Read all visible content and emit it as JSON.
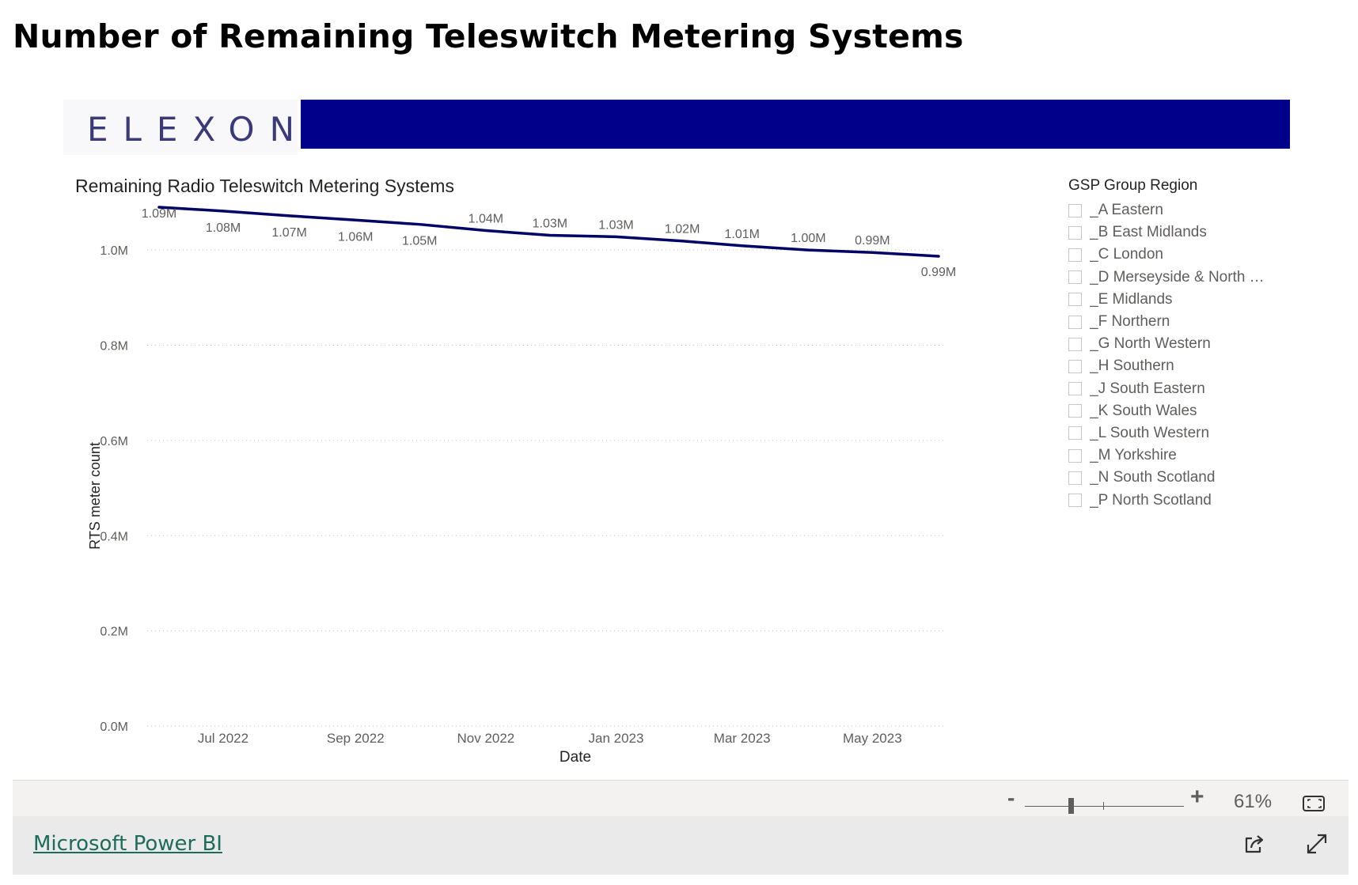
{
  "page": {
    "title": "Number of Remaining Teleswitch Metering Systems"
  },
  "logo": {
    "text": "ELEXON",
    "banner_color": "#00008b"
  },
  "chart_data": {
    "type": "line",
    "title": "Remaining Radio Teleswitch Metering Systems",
    "xlabel": "Date",
    "ylabel": "RTS meter count",
    "x": [
      "2022-06-01",
      "2022-07-01",
      "2022-08-01",
      "2022-09-01",
      "2022-10-01",
      "2022-11-01",
      "2022-12-01",
      "2023-01-01",
      "2023-02-01",
      "2023-03-01",
      "2023-04-01",
      "2023-05-01",
      "2023-06-01"
    ],
    "values": [
      1090000,
      1082000,
      1072000,
      1063000,
      1054000,
      1041000,
      1031000,
      1028000,
      1019000,
      1009000,
      1000000,
      995000,
      987000
    ],
    "data_labels": [
      "1.09M",
      "1.08M",
      "1.07M",
      "1.06M",
      "1.05M",
      "1.04M",
      "1.03M",
      "1.03M",
      "1.02M",
      "1.01M",
      "1.00M",
      "0.99M",
      "0.99M"
    ],
    "ylim": [
      0,
      1100000
    ],
    "y_ticks": [
      0,
      200000,
      400000,
      600000,
      800000,
      1000000
    ],
    "y_tick_labels": [
      "0.0M",
      "0.2M",
      "0.4M",
      "0.6M",
      "0.8M",
      "1.0M"
    ],
    "x_ticks": [
      "2022-07-01",
      "2022-09-01",
      "2022-11-01",
      "2023-01-01",
      "2023-03-01",
      "2023-05-01"
    ],
    "x_tick_labels": [
      "Jul 2022",
      "Sep 2022",
      "Nov 2022",
      "Jan 2023",
      "Mar 2023",
      "May 2023"
    ],
    "grid": true,
    "line_color": "#000066"
  },
  "slicer": {
    "title": "GSP Group Region",
    "items": [
      {
        "label": "_A Eastern",
        "checked": false
      },
      {
        "label": "_B East Midlands",
        "checked": false
      },
      {
        "label": "_C London",
        "checked": false
      },
      {
        "label": "_D Merseyside & North …",
        "checked": false
      },
      {
        "label": "_E Midlands",
        "checked": false
      },
      {
        "label": "_F Northern",
        "checked": false
      },
      {
        "label": "_G North Western",
        "checked": false
      },
      {
        "label": "_H Southern",
        "checked": false
      },
      {
        "label": "_J South Eastern",
        "checked": false
      },
      {
        "label": "_K South Wales",
        "checked": false
      },
      {
        "label": "_L South Western",
        "checked": false
      },
      {
        "label": "_M Yorkshire",
        "checked": false
      },
      {
        "label": "_N South Scotland",
        "checked": false
      },
      {
        "label": "_P North Scotland",
        "checked": false
      }
    ]
  },
  "zoom": {
    "minus": "-",
    "plus": "+",
    "percent": "61%",
    "level": 0.61
  },
  "footer": {
    "link_text": "Microsoft Power BI"
  },
  "icons": {
    "fit": "fit-to-page-icon",
    "share": "share-icon",
    "expand": "fullscreen-icon"
  }
}
